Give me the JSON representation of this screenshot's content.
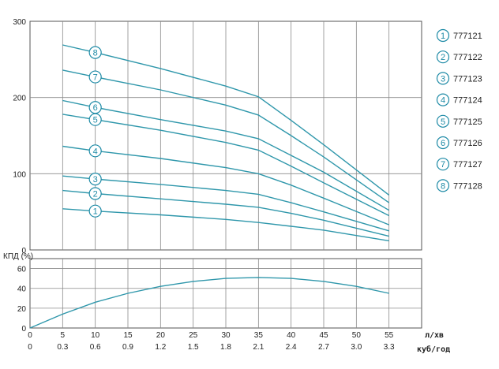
{
  "colors": {
    "curve": "#2f97ab",
    "grid": "#8a8a8a",
    "frame": "#555555",
    "marker": "#1d8aa6"
  },
  "chart_data": [
    {
      "type": "line",
      "title": "",
      "xlabel": "",
      "ylabel": "",
      "xlim": [
        0,
        60
      ],
      "ylim": [
        0,
        300
      ],
      "grid": true,
      "x_ticks": [
        0,
        5,
        10,
        15,
        20,
        25,
        30,
        35,
        40,
        45,
        50,
        55
      ],
      "y_ticks": [
        "0",
        "100",
        "200",
        "300"
      ],
      "legend_position": "right",
      "series": [
        {
          "name": "777121",
          "marker_label": "1",
          "x": [
            5,
            10,
            20,
            30,
            35,
            40,
            45,
            55
          ],
          "y": [
            54,
            51,
            46,
            40,
            36,
            31,
            26,
            12
          ]
        },
        {
          "name": "777122",
          "marker_label": "2",
          "x": [
            5,
            10,
            20,
            30,
            35,
            40,
            45,
            55
          ],
          "y": [
            78,
            74,
            67,
            60,
            56,
            48,
            39,
            18
          ]
        },
        {
          "name": "777123",
          "marker_label": "3",
          "x": [
            5,
            10,
            20,
            30,
            35,
            40,
            45,
            55
          ],
          "y": [
            97,
            93,
            86,
            78,
            73,
            62,
            50,
            25
          ]
        },
        {
          "name": "777124",
          "marker_label": "4",
          "x": [
            5,
            10,
            20,
            30,
            35,
            40,
            45,
            55
          ],
          "y": [
            136,
            130,
            120,
            108,
            100,
            85,
            68,
            33
          ]
        },
        {
          "name": "777125",
          "marker_label": "5",
          "x": [
            5,
            10,
            20,
            30,
            35,
            40,
            45,
            55
          ],
          "y": [
            178,
            171,
            157,
            141,
            131,
            110,
            88,
            45
          ]
        },
        {
          "name": "777126",
          "marker_label": "6",
          "x": [
            5,
            10,
            20,
            30,
            35,
            40,
            45,
            55
          ],
          "y": [
            196,
            187,
            171,
            156,
            146,
            124,
            102,
            52
          ]
        },
        {
          "name": "777127",
          "marker_label": "7",
          "x": [
            5,
            10,
            20,
            30,
            35,
            40,
            45,
            55
          ],
          "y": [
            236,
            227,
            210,
            190,
            177,
            150,
            122,
            62
          ]
        },
        {
          "name": "777128",
          "marker_label": "8",
          "x": [
            5,
            10,
            20,
            30,
            35,
            40,
            45,
            55
          ],
          "y": [
            269,
            259,
            238,
            215,
            201,
            170,
            138,
            72
          ]
        }
      ]
    },
    {
      "type": "line",
      "title": "",
      "ylabel": "КПД (%)",
      "xlim": [
        0,
        60
      ],
      "ylim": [
        0,
        70
      ],
      "grid": true,
      "y_ticks": [
        "0",
        "20",
        "40",
        "60"
      ],
      "x_ticks_primary": [
        "0",
        "5",
        "10",
        "15",
        "20",
        "25",
        "30",
        "35",
        "40",
        "45",
        "50",
        "55"
      ],
      "x_unit_primary": "л/хв",
      "x_ticks_secondary": [
        "0",
        "0.3",
        "0.6",
        "0.9",
        "1.2",
        "1.5",
        "1.8",
        "2.1",
        "2.4",
        "2.7",
        "3.0",
        "3.3"
      ],
      "x_unit_secondary": "куб/год",
      "series": [
        {
          "x": [
            0,
            5,
            10,
            15,
            20,
            25,
            30,
            35,
            40,
            45,
            50,
            55
          ],
          "y": [
            0,
            14,
            26,
            35,
            42,
            47,
            50,
            51,
            50,
            47,
            42,
            35
          ]
        }
      ]
    }
  ]
}
